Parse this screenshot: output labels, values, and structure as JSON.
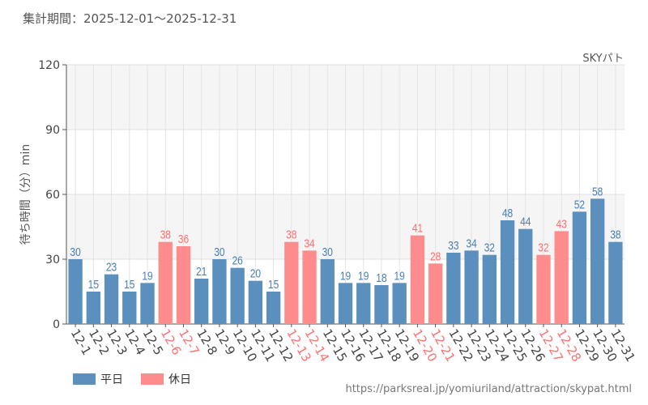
{
  "header": {
    "title": "集計期間：2025-12-01～2025-12-31",
    "attraction": "SKYパト"
  },
  "footer": {
    "url": "https://parksreal.jp/yomiuriland/attraction/skypat.html"
  },
  "colors": {
    "weekday": "#5b8fbe",
    "holiday": "#ff8c8c",
    "weekday_text": "#4a7fb0",
    "holiday_text": "#ff7070"
  },
  "chart_data": {
    "type": "bar",
    "title": "",
    "xlabel": "",
    "ylabel": "待ち時間（分）min",
    "ylim": [
      0,
      120
    ],
    "yticks": [
      0,
      30,
      60,
      90,
      120
    ],
    "grid": true,
    "legend": [
      {
        "name": "平日",
        "key": "weekday"
      },
      {
        "name": "休日",
        "key": "holiday"
      }
    ],
    "legend_position": "bottom-left",
    "categories": [
      "12-1",
      "12-2",
      "12-3",
      "12-4",
      "12-5",
      "12-6",
      "12-7",
      "12-8",
      "12-9",
      "12-10",
      "12-11",
      "12-12",
      "12-13",
      "12-14",
      "12-15",
      "12-16",
      "12-17",
      "12-18",
      "12-19",
      "12-20",
      "12-21",
      "12-22",
      "12-23",
      "12-24",
      "12-25",
      "12-26",
      "12-27",
      "12-28",
      "12-29",
      "12-30",
      "12-31"
    ],
    "values": [
      30,
      15,
      23,
      15,
      19,
      38,
      36,
      21,
      30,
      26,
      20,
      15,
      38,
      34,
      30,
      19,
      19,
      18,
      19,
      41,
      28,
      33,
      34,
      32,
      48,
      44,
      32,
      43,
      52,
      58,
      38
    ],
    "holiday": [
      false,
      false,
      false,
      false,
      false,
      true,
      true,
      false,
      false,
      false,
      false,
      false,
      true,
      true,
      false,
      false,
      false,
      false,
      false,
      true,
      true,
      false,
      false,
      false,
      false,
      false,
      true,
      true,
      false,
      false,
      false
    ]
  }
}
